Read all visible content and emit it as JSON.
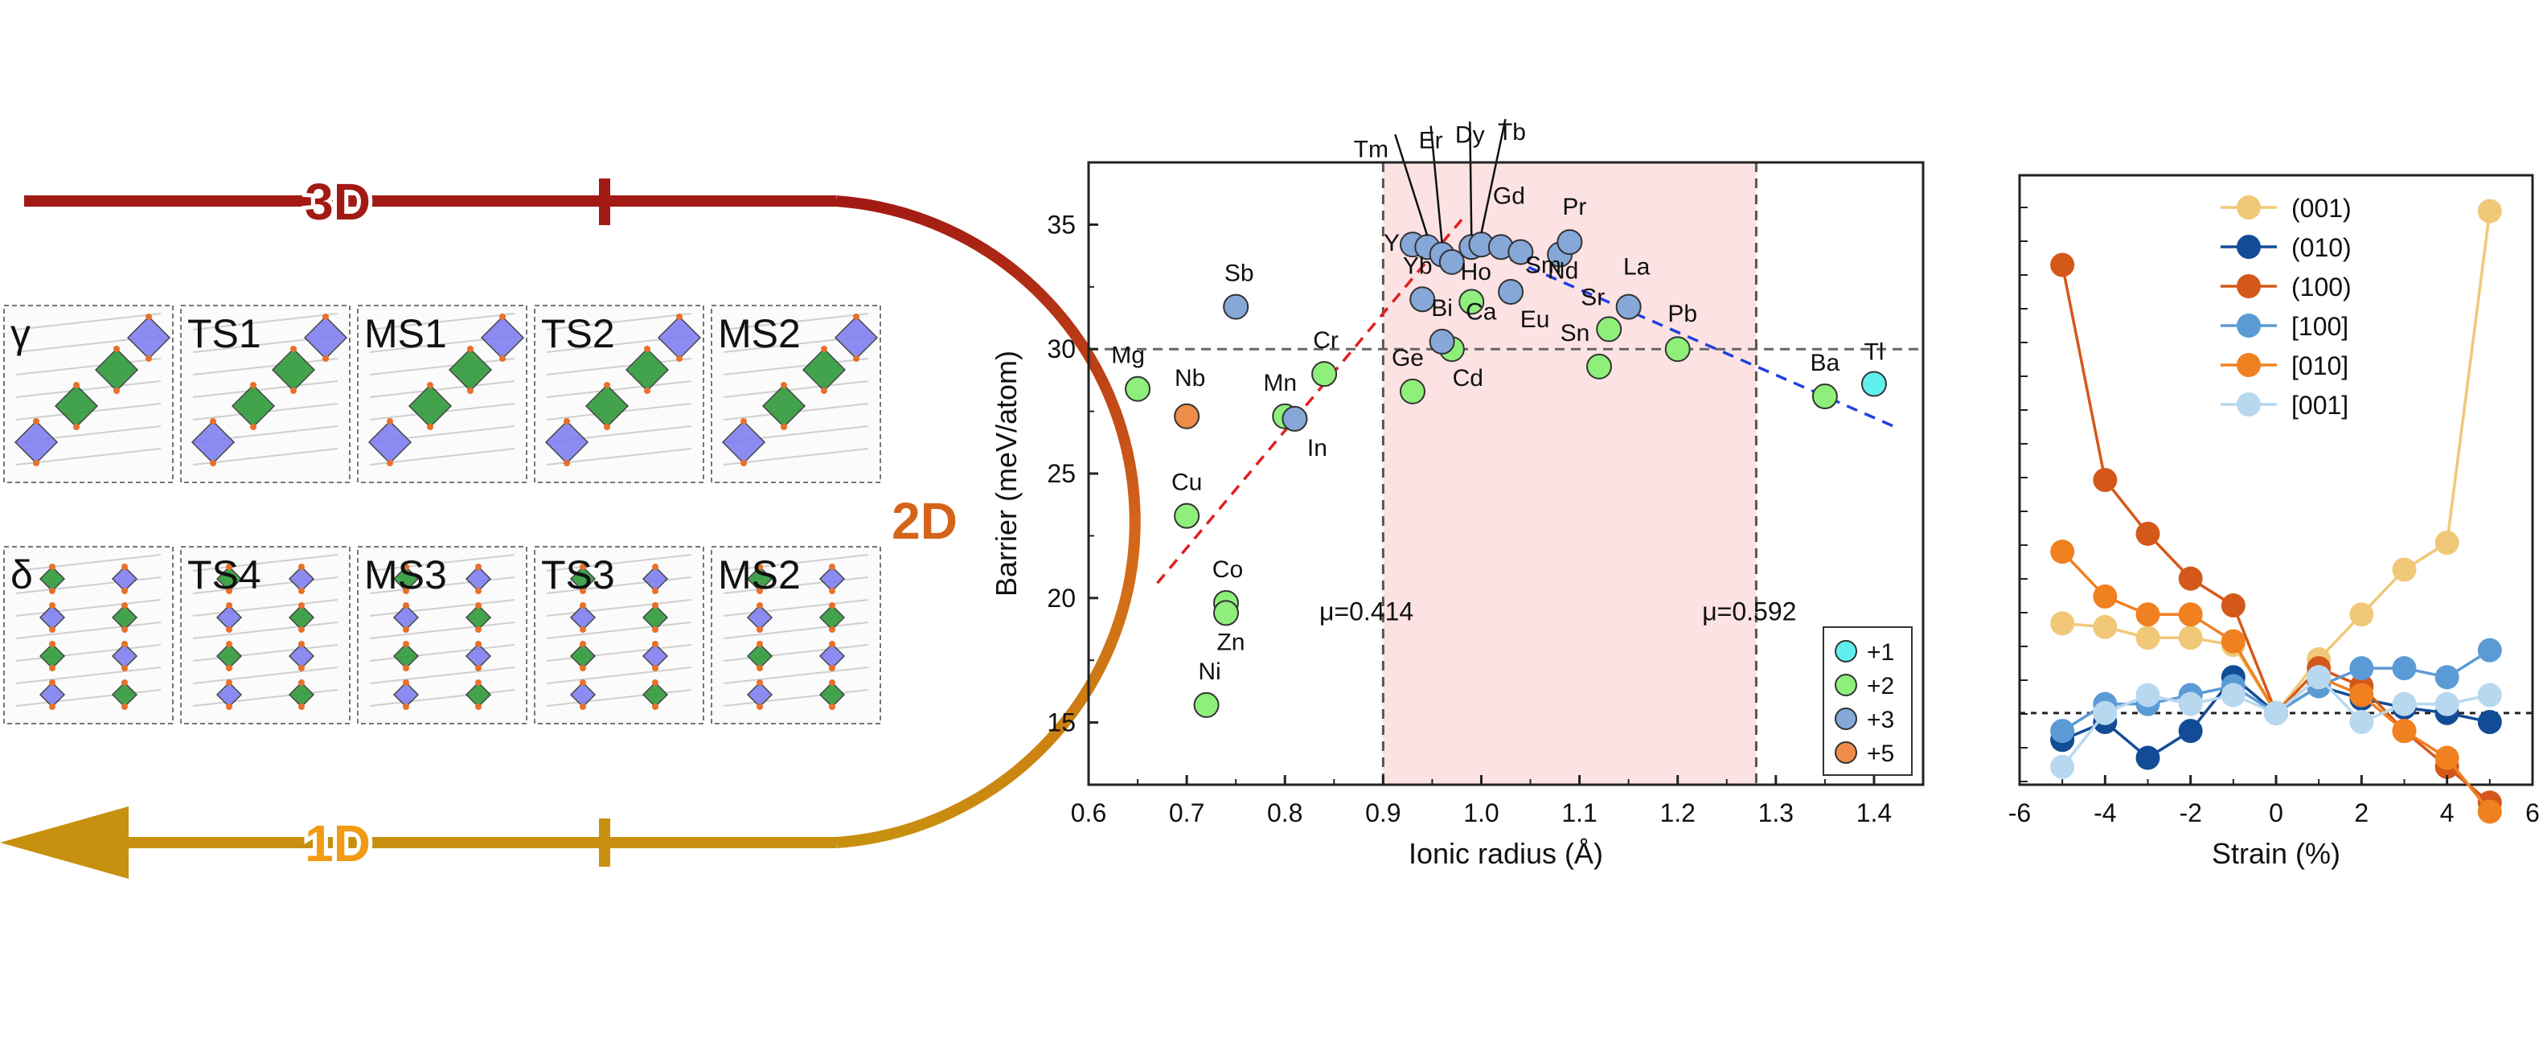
{
  "pathway": {
    "labels": {
      "d3": "3D",
      "d2": "2D",
      "d1": "1D"
    },
    "colors": {
      "d3": "#a31a14",
      "d2": "#d4641a",
      "d1": "#f29a12",
      "arc_top": "#a31a14",
      "arc_bottom": "#c8900f"
    },
    "panels_top": [
      "γ",
      "TS1",
      "MS1",
      "TS2",
      "MS2"
    ],
    "panels_bottom": [
      "δ",
      "TS4",
      "MS3",
      "TS3",
      "MS2"
    ]
  },
  "chart_data": [
    {
      "type": "scatter",
      "xlabel": "Ionic radius (Å)",
      "ylabel": "Barrier (meV/atom)",
      "xlim": [
        0.6,
        1.45
      ],
      "ylim": [
        12.5,
        37.5
      ],
      "xticks": [
        "0.6",
        "0.7",
        "0.8",
        "0.9",
        "1.0",
        "1.1",
        "1.2",
        "1.3",
        "1.4"
      ],
      "yticks": [
        "15",
        "20",
        "25",
        "30",
        "35"
      ],
      "shaded_region": [
        0.9,
        1.28
      ],
      "shaded_color": "#fde2e4",
      "reference_line_y": 30,
      "vlines": [
        0.9,
        1.28
      ],
      "annotations": [
        {
          "text": "μ=0.414",
          "x": 0.835,
          "y": 19.5
        },
        {
          "text": "μ=0.592",
          "x": 1.225,
          "y": 19.5
        }
      ],
      "trend_lines": [
        {
          "color": "#e02020",
          "x": [
            0.67,
            0.98
          ],
          "y": [
            20.6,
            35.2
          ]
        },
        {
          "color": "#2040e0",
          "x": [
            1.03,
            1.42
          ],
          "y": [
            33.6,
            26.9
          ]
        }
      ],
      "legend": {
        "position": "bottom-right",
        "entries": [
          {
            "label": "+1",
            "color": "#5ff0ee"
          },
          {
            "label": "+2",
            "color": "#8ef07a"
          },
          {
            "label": "+3",
            "color": "#86a8d8"
          },
          {
            "label": "+5",
            "color": "#ef8c4a"
          }
        ]
      },
      "series": [
        {
          "name": "+1",
          "color": "#5ff0ee",
          "points": [
            {
              "label": "Tl",
              "x": 1.4,
              "y": 28.6
            }
          ]
        },
        {
          "name": "+2",
          "color": "#8ef07a",
          "points": [
            {
              "label": "Mg",
              "x": 0.65,
              "y": 28.4
            },
            {
              "label": "Cr",
              "x": 0.84,
              "y": 29.0
            },
            {
              "label": "Mn",
              "x": 0.8,
              "y": 27.3
            },
            {
              "label": "Cu",
              "x": 0.7,
              "y": 23.3
            },
            {
              "label": "Co",
              "x": 0.74,
              "y": 19.8
            },
            {
              "label": "Zn",
              "x": 0.74,
              "y": 19.4
            },
            {
              "label": "Ni",
              "x": 0.72,
              "y": 15.7
            },
            {
              "label": "Ge",
              "x": 0.93,
              "y": 28.3
            },
            {
              "label": "Cd",
              "x": 0.97,
              "y": 30.0
            },
            {
              "label": "Ca",
              "x": 0.99,
              "y": 31.9
            },
            {
              "label": "Sr",
              "x": 1.13,
              "y": 30.8
            },
            {
              "label": "Sn",
              "x": 1.12,
              "y": 29.3
            },
            {
              "label": "Pb",
              "x": 1.2,
              "y": 30.0
            },
            {
              "label": "Ba",
              "x": 1.35,
              "y": 28.1
            }
          ]
        },
        {
          "name": "+3",
          "color": "#86a8d8",
          "points": [
            {
              "label": "Sb",
              "x": 0.75,
              "y": 31.7
            },
            {
              "label": "In",
              "x": 0.81,
              "y": 27.2
            },
            {
              "label": "Bi",
              "x": 0.96,
              "y": 30.3
            },
            {
              "label": "Yb",
              "x": 0.94,
              "y": 32.0
            },
            {
              "label": "Y",
              "x": 0.93,
              "y": 34.2
            },
            {
              "label": "Tm",
              "x": 0.945,
              "y": 34.1
            },
            {
              "label": "Er",
              "x": 0.96,
              "y": 33.8
            },
            {
              "label": "Ho",
              "x": 0.97,
              "y": 33.5
            },
            {
              "label": "Dy",
              "x": 0.99,
              "y": 34.1
            },
            {
              "label": "Tb",
              "x": 1.0,
              "y": 34.2
            },
            {
              "label": "Gd",
              "x": 1.02,
              "y": 34.1
            },
            {
              "label": "Sm",
              "x": 1.04,
              "y": 33.9
            },
            {
              "label": "Eu",
              "x": 1.03,
              "y": 32.3
            },
            {
              "label": "Nd",
              "x": 1.08,
              "y": 33.8
            },
            {
              "label": "Pr",
              "x": 1.09,
              "y": 34.3
            },
            {
              "label": "La",
              "x": 1.15,
              "y": 31.7
            }
          ]
        },
        {
          "name": "+5",
          "color": "#ef8c4a",
          "points": [
            {
              "label": "Nb",
              "x": 0.7,
              "y": 27.3
            }
          ]
        }
      ]
    },
    {
      "type": "line",
      "xlabel": "Strain (%)",
      "ylabel": "",
      "xlim": [
        -6,
        6
      ],
      "ylim": [
        -4,
        30
      ],
      "xticks": [
        "-6",
        "-4",
        "-2",
        "0",
        "2",
        "4",
        "6"
      ],
      "reference_line_y": 0,
      "legend": {
        "position": "top-center"
      },
      "x": [
        -5,
        -4,
        -3,
        -2,
        -1,
        0,
        1,
        2,
        3,
        4,
        5
      ],
      "series": [
        {
          "name": "(001)",
          "color": "#f0c878",
          "values": [
            5.0,
            4.8,
            4.2,
            4.2,
            3.8,
            0.0,
            3.0,
            5.5,
            8.0,
            9.5,
            28.0
          ]
        },
        {
          "name": "(010)",
          "color": "#134c96",
          "values": [
            -1.5,
            -0.5,
            -2.5,
            -1.0,
            2.0,
            0.0,
            1.5,
            0.8,
            0.3,
            0.0,
            -0.5
          ]
        },
        {
          "name": "(100)",
          "color": "#d4581a",
          "values": [
            25.0,
            13.0,
            10.0,
            7.5,
            6.0,
            0.0,
            2.5,
            1.5,
            -1.0,
            -3.0,
            -5.0
          ]
        },
        {
          "name": "[100]",
          "color": "#5b9bd5",
          "values": [
            -1.0,
            0.5,
            0.5,
            1.0,
            1.5,
            0.0,
            1.5,
            2.5,
            2.5,
            2.0,
            3.5
          ]
        },
        {
          "name": "[010]",
          "color": "#f08020",
          "values": [
            9.0,
            6.5,
            5.5,
            5.5,
            4.0,
            0.0,
            2.0,
            1.0,
            -1.0,
            -2.5,
            -5.5
          ]
        },
        {
          "name": "[001]",
          "color": "#b8d8f0",
          "values": [
            -3.0,
            0.0,
            1.0,
            0.5,
            1.0,
            0.0,
            2.0,
            -0.5,
            0.5,
            0.5,
            1.0
          ]
        }
      ]
    }
  ]
}
